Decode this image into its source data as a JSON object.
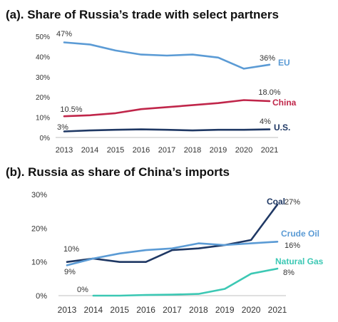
{
  "chart_data": [
    {
      "type": "line",
      "title": "(a). Share of Russia’s trade with select partners",
      "x": [
        "2013",
        "2014",
        "2015",
        "2016",
        "2017",
        "2018",
        "2019",
        "2020",
        "2021"
      ],
      "ylim": [
        0,
        50
      ],
      "yticks": [
        "0%",
        "10%",
        "20%",
        "30%",
        "40%",
        "50%"
      ],
      "grid": false,
      "series": [
        {
          "name": "EU",
          "color": "#5b9bd5",
          "values": [
            47,
            46,
            43,
            41,
            40.5,
            41,
            39.5,
            34,
            36
          ],
          "first_label": "47%",
          "last_label": "36%"
        },
        {
          "name": "China",
          "color": "#c0264a",
          "values": [
            10.5,
            11,
            12,
            14,
            15,
            16,
            17,
            18.5,
            18
          ],
          "first_label": "10.5%",
          "last_label": "18.0%"
        },
        {
          "name": "U.S.",
          "color": "#1f3864",
          "values": [
            3,
            3.5,
            3.8,
            4,
            3.8,
            3.5,
            3.8,
            3.8,
            4
          ],
          "first_label": "3%",
          "last_label": "4%"
        }
      ]
    },
    {
      "type": "line",
      "title": "(b). Russia as share of China’s imports",
      "x": [
        "2013",
        "2014",
        "2015",
        "2016",
        "2017",
        "2018",
        "2019",
        "2020",
        "2021"
      ],
      "ylim": [
        0,
        30
      ],
      "yticks": [
        "0%",
        "10%",
        "20%",
        "30%"
      ],
      "grid": false,
      "series": [
        {
          "name": "Coal",
          "color": "#1f3864",
          "values": [
            10,
            11,
            10,
            10,
            13.5,
            14,
            15,
            16.5,
            27
          ],
          "first_label": "10%",
          "last_label": "27%"
        },
        {
          "name": "Crude Oil",
          "color": "#5b9bd5",
          "values": [
            9,
            11,
            12.5,
            13.5,
            14,
            15.5,
            15,
            15.5,
            16
          ],
          "first_label": "9%",
          "last_label": "16%"
        },
        {
          "name": "Natural Gas",
          "color": "#3cc8b4",
          "values": [
            null,
            0,
            0,
            0.2,
            0.3,
            0.5,
            2,
            6.5,
            8
          ],
          "first_label": "0%",
          "last_label": "8%"
        }
      ]
    }
  ]
}
